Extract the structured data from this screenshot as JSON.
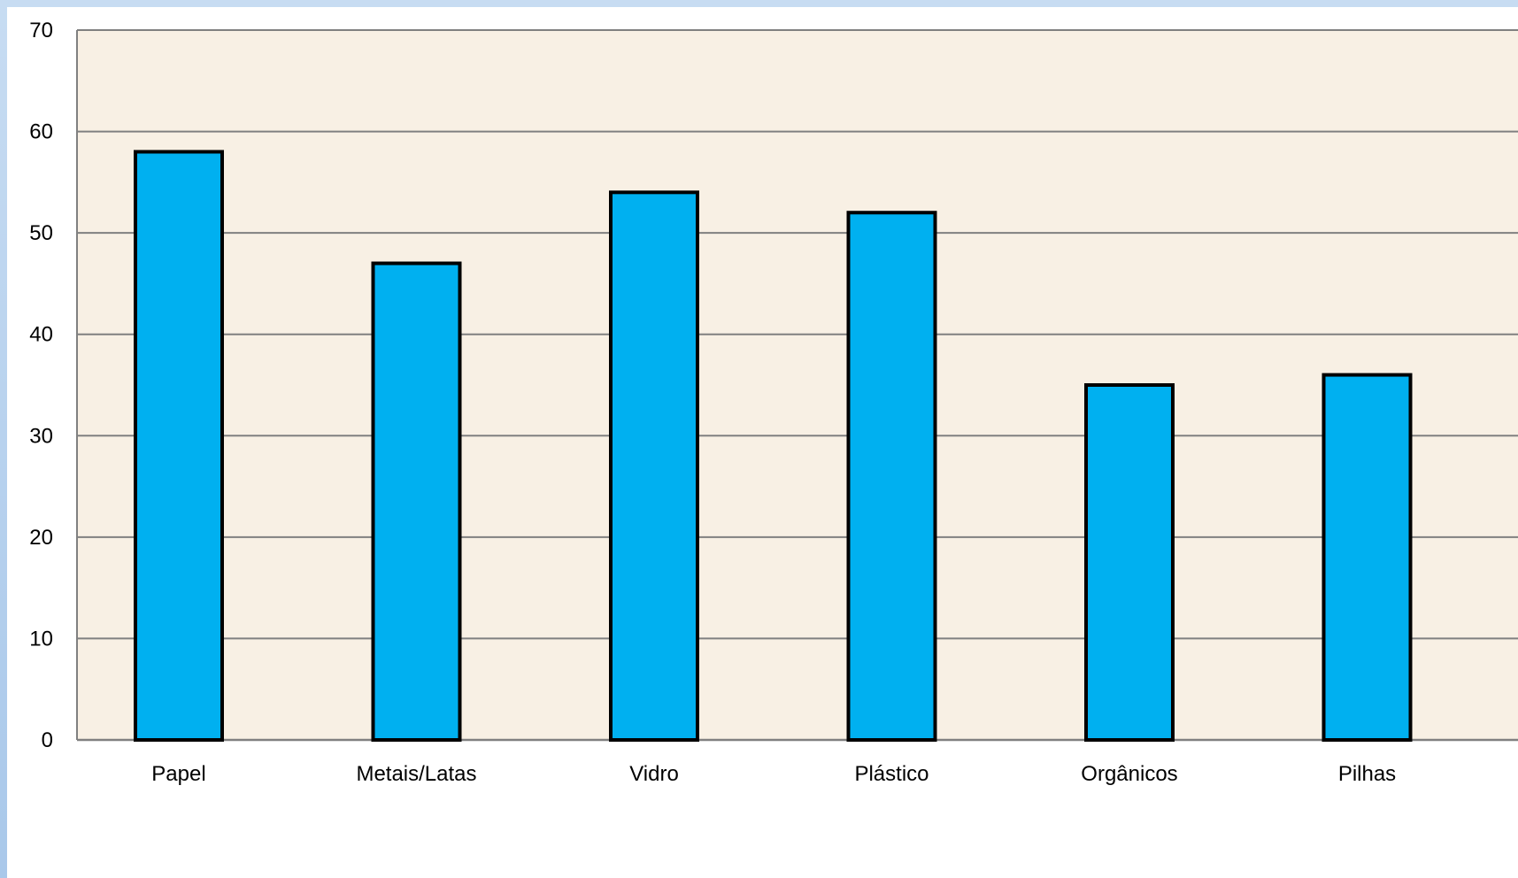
{
  "chart_data": {
    "type": "bar",
    "categories": [
      "Papel",
      "Metais/Latas",
      "Vidro",
      "Plástico",
      "Orgânicos",
      "Pilhas"
    ],
    "values": [
      58,
      47,
      54,
      52,
      35,
      36
    ],
    "title": "",
    "xlabel": "",
    "ylabel": "",
    "ylim": [
      0,
      70
    ],
    "yticks": [
      0,
      10,
      20,
      30,
      40,
      50,
      60,
      70
    ],
    "grid": true,
    "legend": "none",
    "colors": {
      "bar_fill": "#00b0f0",
      "bar_stroke": "#000000",
      "plot_background": "#f8f0e4",
      "gridline": "#808080"
    }
  }
}
